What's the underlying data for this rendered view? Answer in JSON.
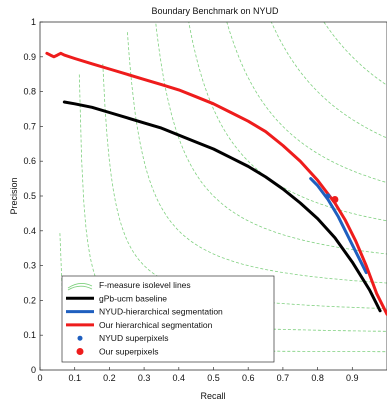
{
  "chart_data": {
    "type": "line",
    "title": "Boundary Benchmark on NYUD",
    "xlabel": "Recall",
    "ylabel": "Precision",
    "xlim": [
      0,
      1
    ],
    "ylim": [
      0,
      1
    ],
    "x_ticks": [
      "0",
      "0.1",
      "0.2",
      "0.3",
      "0.4",
      "0.5",
      "0.6",
      "0.7",
      "0.8",
      "0.9"
    ],
    "y_ticks": [
      "0",
      "0.1",
      "0.2",
      "0.3",
      "0.4",
      "0.5",
      "0.6",
      "0.7",
      "0.8",
      "0.9",
      "1"
    ],
    "grid": false,
    "legend_placement": "bottom-left",
    "isolines": {
      "name": "F-measure isolevel lines",
      "color": "#7fd07f",
      "levels": [
        0.1,
        0.2,
        0.3,
        0.4,
        0.5,
        0.6,
        0.7,
        0.8,
        0.9
      ]
    },
    "series": [
      {
        "name": "gPb-ucm baseline",
        "color": "#000000",
        "kind": "line",
        "points": [
          [
            0.07,
            0.77
          ],
          [
            0.1,
            0.765
          ],
          [
            0.15,
            0.755
          ],
          [
            0.2,
            0.74
          ],
          [
            0.25,
            0.725
          ],
          [
            0.3,
            0.71
          ],
          [
            0.35,
            0.695
          ],
          [
            0.4,
            0.675
          ],
          [
            0.45,
            0.655
          ],
          [
            0.5,
            0.635
          ],
          [
            0.55,
            0.61
          ],
          [
            0.6,
            0.585
          ],
          [
            0.65,
            0.555
          ],
          [
            0.7,
            0.52
          ],
          [
            0.75,
            0.48
          ],
          [
            0.8,
            0.435
          ],
          [
            0.85,
            0.38
          ],
          [
            0.9,
            0.31
          ],
          [
            0.95,
            0.23
          ],
          [
            0.98,
            0.17
          ]
        ]
      },
      {
        "name": "NYUD-hierarchical segmentation",
        "color": "#1f5fbf",
        "kind": "line",
        "points": [
          [
            0.78,
            0.55
          ],
          [
            0.8,
            0.53
          ],
          [
            0.83,
            0.49
          ],
          [
            0.86,
            0.44
          ],
          [
            0.89,
            0.38
          ],
          [
            0.92,
            0.32
          ],
          [
            0.94,
            0.28
          ]
        ]
      },
      {
        "name": "Our hierarchical segmentation",
        "color": "#ee1c1c",
        "kind": "line",
        "points": [
          [
            0.02,
            0.91
          ],
          [
            0.03,
            0.905
          ],
          [
            0.04,
            0.9
          ],
          [
            0.05,
            0.905
          ],
          [
            0.06,
            0.91
          ],
          [
            0.07,
            0.905
          ],
          [
            0.1,
            0.895
          ],
          [
            0.15,
            0.88
          ],
          [
            0.2,
            0.865
          ],
          [
            0.25,
            0.85
          ],
          [
            0.3,
            0.835
          ],
          [
            0.35,
            0.82
          ],
          [
            0.4,
            0.805
          ],
          [
            0.45,
            0.785
          ],
          [
            0.5,
            0.765
          ],
          [
            0.55,
            0.74
          ],
          [
            0.6,
            0.715
          ],
          [
            0.65,
            0.685
          ],
          [
            0.7,
            0.645
          ],
          [
            0.75,
            0.6
          ],
          [
            0.8,
            0.545
          ],
          [
            0.85,
            0.48
          ],
          [
            0.88,
            0.43
          ],
          [
            0.91,
            0.37
          ],
          [
            0.94,
            0.3
          ],
          [
            0.97,
            0.22
          ],
          [
            1.0,
            0.16
          ]
        ]
      },
      {
        "name": "NYUD superpixels",
        "color": "#1f5fbf",
        "kind": "point",
        "points": [
          [
            0.83,
            0.5
          ]
        ]
      },
      {
        "name": "Our superpixels",
        "color": "#ee1c1c",
        "kind": "point",
        "points": [
          [
            0.85,
            0.49
          ]
        ]
      }
    ]
  }
}
